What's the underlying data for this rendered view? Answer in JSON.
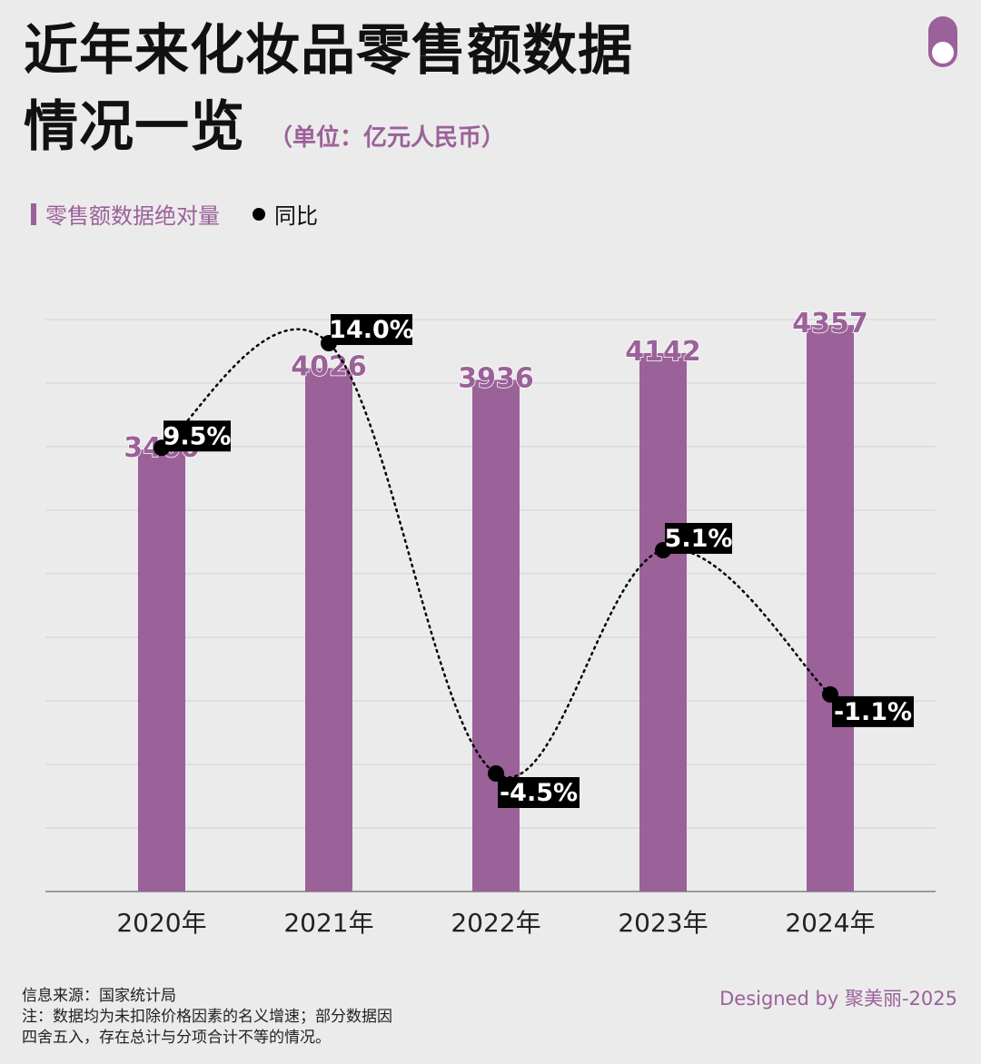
{
  "header": {
    "title_line1": "近年来化妆品零售额数据",
    "title_line2": "情况一览",
    "unit": "（单位：亿元人民币）"
  },
  "legend": {
    "bar_label": "零售额数据绝对量",
    "dot_label": "同比"
  },
  "footer": {
    "source": "信息来源：国家统计局",
    "note_line1": "注：数据均为未扣除价格因素的名义增速；部分数据因",
    "note_line2": "四舍五入，存在总计与分项合计不等的情况。",
    "credit": "Designed by 聚美丽-2025"
  },
  "colors": {
    "bar": "#9b6199",
    "dot": "#000000",
    "background": "#ebebeb"
  },
  "chart_data": {
    "type": "bar",
    "categories": [
      "2020年",
      "2021年",
      "2022年",
      "2023年",
      "2024年"
    ],
    "series": [
      {
        "name": "零售额数据绝对量",
        "type": "bar",
        "values": [
          3400,
          4026,
          3936,
          4142,
          4357
        ],
        "labels": [
          "3400",
          "4026",
          "3936",
          "4142",
          "4357"
        ]
      },
      {
        "name": "同比",
        "type": "line",
        "values": [
          9.5,
          14.0,
          -4.5,
          5.1,
          -1.1
        ],
        "labels": [
          "9.5%",
          "14.0%",
          "-4.5%",
          "5.1%",
          "-1.1%"
        ]
      }
    ],
    "ylim": [
      0,
      4400
    ],
    "grid": true,
    "legend_position": "top-left"
  }
}
